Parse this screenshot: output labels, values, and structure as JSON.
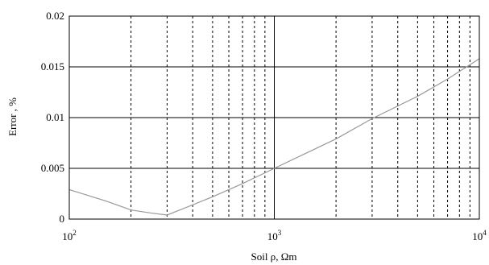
{
  "chart_data": {
    "type": "line",
    "title": "",
    "xlabel": "Soil ρ, Ωm",
    "ylabel": "Error  , %",
    "x_scale": "log",
    "xlim": [
      100,
      10000
    ],
    "ylim": [
      0,
      0.02
    ],
    "x_ticks": [
      {
        "base": "10",
        "exp": "2"
      },
      {
        "base": "10",
        "exp": "3"
      },
      {
        "base": "10",
        "exp": "4"
      }
    ],
    "y_ticks": [
      "0",
      "0.005",
      "0.01",
      "0.015",
      "0.02"
    ],
    "grid": {
      "major": "solid",
      "minor": "dashed"
    },
    "series": [
      {
        "color": "#999999",
        "x": [
          100,
          150,
          200,
          250,
          300,
          400,
          500,
          700,
          1000,
          2000,
          3000,
          5000,
          7000,
          10000
        ],
        "y": [
          0.0029,
          0.0018,
          0.0009,
          0.0006,
          0.0004,
          0.0014,
          0.0022,
          0.0035,
          0.005,
          0.0079,
          0.0099,
          0.0121,
          0.0138,
          0.0158
        ]
      }
    ]
  }
}
